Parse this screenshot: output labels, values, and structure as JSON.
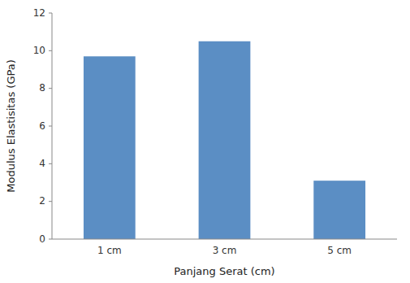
{
  "chart_data": {
    "type": "bar",
    "categories": [
      "1 cm",
      "3 cm",
      "5 cm"
    ],
    "values": [
      9.7,
      10.5,
      3.1
    ],
    "color": "#5b8ec4",
    "xlabel": "Panjang Serat (cm)",
    "ylabel": "Modulus Elastisitas (GPa)",
    "ylim": [
      0,
      12
    ],
    "yticks": [
      0,
      2,
      4,
      6,
      8,
      10,
      12
    ],
    "grid": false
  }
}
